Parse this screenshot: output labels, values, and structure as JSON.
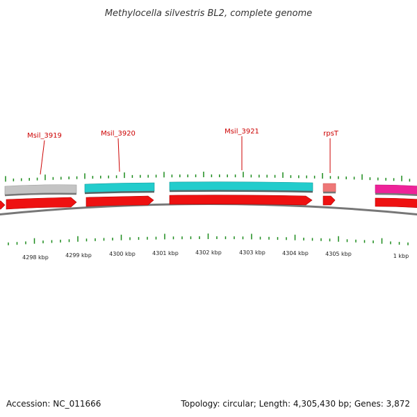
{
  "title": "Methylocella silvestris BL2, complete genome",
  "footer": {
    "accession": "Accession: NC_011666",
    "summary": "Topology: circular; Length: 4,305,430 bp; Genes: 3,872"
  },
  "colors": {
    "background": "#ffffff",
    "label": "#cc0000",
    "tick": "#1a8a1a",
    "backbone": "#777777",
    "cds": "#ee1111",
    "gene_cyan": "#22cccc",
    "gene_gray": "#c4c4c4",
    "gene_pink": "#ee7777",
    "gene_magenta": "#ee2299"
  },
  "gene_labels": [
    {
      "name": "label-msil-3919",
      "text": "Msil_3919"
    },
    {
      "name": "label-msil-3920",
      "text": "Msil_3920"
    },
    {
      "name": "label-msil-3921",
      "text": "Msil_3921"
    },
    {
      "name": "label-rpst",
      "text": "rpsT"
    }
  ],
  "axis_labels": [
    "4298 kbp",
    "4299 kbp",
    "4300 kbp",
    "4301 kbp",
    "4302 kbp",
    "4303 kbp",
    "4304 kbp",
    "4305 kbp",
    "1 kbp"
  ]
}
